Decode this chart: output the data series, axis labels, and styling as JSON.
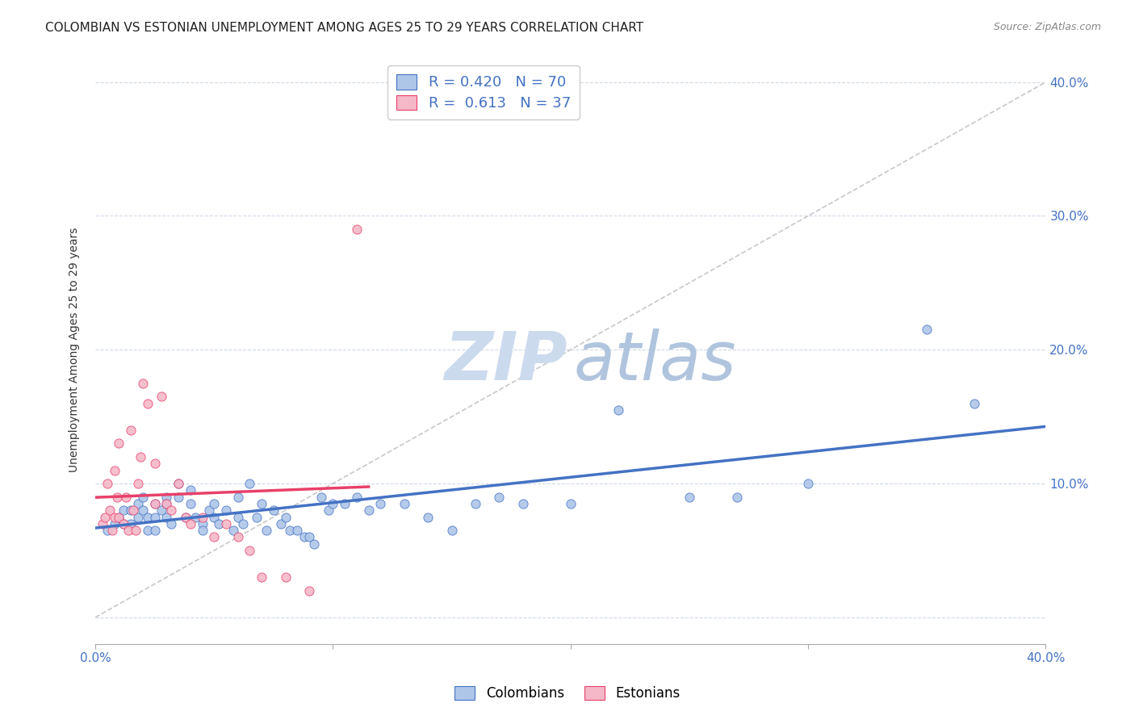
{
  "title": "COLOMBIAN VS ESTONIAN UNEMPLOYMENT AMONG AGES 25 TO 29 YEARS CORRELATION CHART",
  "source": "Source: ZipAtlas.com",
  "ylabel": "Unemployment Among Ages 25 to 29 years",
  "xlim": [
    0.0,
    0.4
  ],
  "ylim": [
    -0.02,
    0.42
  ],
  "colombian_R": 0.42,
  "colombian_N": 70,
  "estonian_R": 0.613,
  "estonian_N": 37,
  "color_colombian_fill": "#aec6e8",
  "color_estonian_fill": "#f4b8c8",
  "color_colombian_edge": "#4472c4",
  "color_estonian_edge": "#e8406a",
  "color_colombian_line": "#4472c4",
  "color_estonian_line": "#e8406a",
  "color_diagonal": "#c8c8c8",
  "background_color": "#ffffff",
  "grid_color": "#d0d8e8",
  "tick_color": "#4472c4",
  "title_fontsize": 11,
  "axis_label_fontsize": 10,
  "tick_fontsize": 11,
  "colombian_scatter_x": [
    0.005,
    0.008,
    0.01,
    0.012,
    0.012,
    0.015,
    0.015,
    0.018,
    0.018,
    0.02,
    0.02,
    0.022,
    0.022,
    0.025,
    0.025,
    0.025,
    0.028,
    0.03,
    0.03,
    0.03,
    0.032,
    0.035,
    0.035,
    0.038,
    0.04,
    0.04,
    0.042,
    0.045,
    0.045,
    0.048,
    0.05,
    0.05,
    0.052,
    0.055,
    0.058,
    0.06,
    0.06,
    0.062,
    0.065,
    0.068,
    0.07,
    0.072,
    0.075,
    0.078,
    0.08,
    0.082,
    0.085,
    0.088,
    0.09,
    0.092,
    0.095,
    0.098,
    0.1,
    0.105,
    0.11,
    0.115,
    0.12,
    0.13,
    0.14,
    0.15,
    0.16,
    0.17,
    0.18,
    0.2,
    0.22,
    0.25,
    0.27,
    0.3,
    0.35,
    0.37
  ],
  "colombian_scatter_y": [
    0.065,
    0.07,
    0.075,
    0.07,
    0.08,
    0.08,
    0.07,
    0.085,
    0.075,
    0.09,
    0.08,
    0.075,
    0.065,
    0.085,
    0.075,
    0.065,
    0.08,
    0.09,
    0.085,
    0.075,
    0.07,
    0.1,
    0.09,
    0.075,
    0.095,
    0.085,
    0.075,
    0.07,
    0.065,
    0.08,
    0.075,
    0.085,
    0.07,
    0.08,
    0.065,
    0.075,
    0.09,
    0.07,
    0.1,
    0.075,
    0.085,
    0.065,
    0.08,
    0.07,
    0.075,
    0.065,
    0.065,
    0.06,
    0.06,
    0.055,
    0.09,
    0.08,
    0.085,
    0.085,
    0.09,
    0.08,
    0.085,
    0.085,
    0.075,
    0.065,
    0.085,
    0.09,
    0.085,
    0.085,
    0.155,
    0.09,
    0.09,
    0.1,
    0.215,
    0.16
  ],
  "estonian_scatter_x": [
    0.003,
    0.004,
    0.005,
    0.006,
    0.007,
    0.008,
    0.008,
    0.009,
    0.01,
    0.01,
    0.012,
    0.013,
    0.014,
    0.015,
    0.016,
    0.017,
    0.018,
    0.019,
    0.02,
    0.022,
    0.025,
    0.025,
    0.028,
    0.03,
    0.032,
    0.035,
    0.038,
    0.04,
    0.045,
    0.05,
    0.055,
    0.06,
    0.065,
    0.07,
    0.08,
    0.09,
    0.11
  ],
  "estonian_scatter_y": [
    0.07,
    0.075,
    0.1,
    0.08,
    0.065,
    0.11,
    0.075,
    0.09,
    0.075,
    0.13,
    0.07,
    0.09,
    0.065,
    0.14,
    0.08,
    0.065,
    0.1,
    0.12,
    0.175,
    0.16,
    0.085,
    0.115,
    0.165,
    0.085,
    0.08,
    0.1,
    0.075,
    0.07,
    0.075,
    0.06,
    0.07,
    0.06,
    0.05,
    0.03,
    0.03,
    0.02,
    0.29
  ]
}
